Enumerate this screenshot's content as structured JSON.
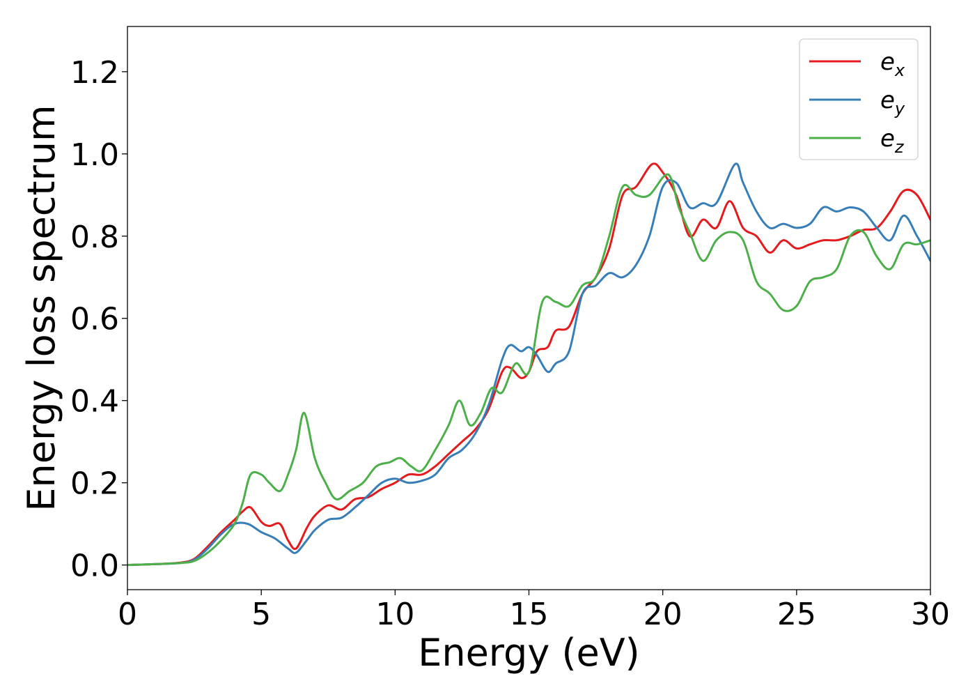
{
  "chart_data": {
    "type": "line",
    "xlabel": "Energy (eV)",
    "ylabel": "Energy loss spectrum",
    "xlim": [
      0,
      30
    ],
    "ylim": [
      -0.06,
      1.31
    ],
    "xticks": [
      0,
      5,
      10,
      15,
      20,
      25,
      30
    ],
    "xtick_labels": [
      "0",
      "5",
      "10",
      "15",
      "20",
      "25",
      "30"
    ],
    "yticks": [
      0.0,
      0.2,
      0.4,
      0.6,
      0.8,
      1.0,
      1.2
    ],
    "ytick_labels": [
      "0.0",
      "0.2",
      "0.4",
      "0.6",
      "0.8",
      "1.0",
      "1.2"
    ],
    "grid": false,
    "legend_position": "top-right",
    "series": [
      {
        "name": "e",
        "subscript": "x",
        "color": "#e41a1c",
        "x": [
          0,
          1,
          2,
          2.5,
          3,
          3.5,
          4,
          4.3,
          4.6,
          5,
          5.3,
          5.7,
          6,
          6.3,
          6.7,
          7,
          7.5,
          8,
          8.5,
          9,
          9.5,
          10,
          10.5,
          11,
          11.5,
          12,
          12.5,
          13,
          13.5,
          14,
          14.3,
          14.7,
          15,
          15.3,
          15.7,
          16,
          16.5,
          17,
          17.5,
          18,
          18.5,
          19,
          19.6,
          20,
          20.5,
          21,
          21.5,
          22,
          22.5,
          23,
          23.5,
          24,
          24.5,
          25,
          25.5,
          26,
          26.5,
          27,
          27.5,
          28,
          28.5,
          29,
          29.5,
          30
        ],
        "y": [
          0.0,
          0.002,
          0.006,
          0.015,
          0.045,
          0.08,
          0.11,
          0.13,
          0.14,
          0.105,
          0.095,
          0.1,
          0.06,
          0.04,
          0.09,
          0.12,
          0.145,
          0.135,
          0.16,
          0.165,
          0.185,
          0.2,
          0.22,
          0.22,
          0.24,
          0.27,
          0.3,
          0.33,
          0.38,
          0.47,
          0.48,
          0.455,
          0.47,
          0.52,
          0.53,
          0.57,
          0.58,
          0.66,
          0.7,
          0.77,
          0.9,
          0.92,
          0.975,
          0.955,
          0.9,
          0.8,
          0.84,
          0.82,
          0.885,
          0.82,
          0.8,
          0.76,
          0.79,
          0.77,
          0.78,
          0.79,
          0.79,
          0.8,
          0.815,
          0.82,
          0.86,
          0.91,
          0.9,
          0.84
        ]
      },
      {
        "name": "e",
        "subscript": "y",
        "color": "#377eb8",
        "x": [
          0,
          1,
          2,
          2.5,
          3,
          3.5,
          4,
          4.5,
          5,
          5.5,
          6,
          6.3,
          6.7,
          7,
          7.5,
          8,
          8.5,
          9,
          9.5,
          10,
          10.5,
          11,
          11.5,
          12,
          12.5,
          13,
          13.5,
          14,
          14.3,
          14.7,
          15,
          15.3,
          15.7,
          16,
          16.5,
          17,
          17.5,
          18,
          18.5,
          19,
          19.5,
          20,
          20.5,
          21,
          21.5,
          22,
          22.7,
          23,
          23.5,
          24,
          24.5,
          25,
          25.5,
          26,
          26.5,
          27,
          27.5,
          28,
          28.5,
          29,
          29.5,
          30
        ],
        "y": [
          0.0,
          0.002,
          0.005,
          0.013,
          0.04,
          0.075,
          0.1,
          0.1,
          0.08,
          0.065,
          0.04,
          0.03,
          0.06,
          0.085,
          0.11,
          0.115,
          0.14,
          0.17,
          0.2,
          0.21,
          0.2,
          0.205,
          0.22,
          0.26,
          0.28,
          0.32,
          0.39,
          0.5,
          0.535,
          0.52,
          0.53,
          0.51,
          0.47,
          0.49,
          0.52,
          0.66,
          0.68,
          0.71,
          0.7,
          0.73,
          0.8,
          0.92,
          0.93,
          0.87,
          0.88,
          0.88,
          0.975,
          0.93,
          0.86,
          0.82,
          0.83,
          0.82,
          0.83,
          0.87,
          0.86,
          0.87,
          0.86,
          0.82,
          0.79,
          0.85,
          0.8,
          0.74
        ]
      },
      {
        "name": "e",
        "subscript": "z",
        "color": "#4daf4a",
        "x": [
          0,
          1,
          2,
          2.5,
          3,
          3.5,
          4,
          4.3,
          4.6,
          5,
          5.3,
          5.7,
          6,
          6.3,
          6.6,
          7,
          7.4,
          7.8,
          8.3,
          8.8,
          9.3,
          9.8,
          10.2,
          10.6,
          11,
          11.5,
          12,
          12.4,
          12.8,
          13.2,
          13.6,
          14,
          14.5,
          15,
          15.5,
          16,
          16.5,
          17,
          17.5,
          18,
          18.5,
          19,
          19.5,
          20.2,
          20.6,
          21,
          21.5,
          22,
          22.5,
          23,
          23.5,
          24,
          24.5,
          25,
          25.5,
          26,
          26.5,
          27,
          27.5,
          28,
          28.5,
          29,
          29.5,
          30
        ],
        "y": [
          0.0,
          0.002,
          0.005,
          0.01,
          0.03,
          0.06,
          0.1,
          0.15,
          0.22,
          0.22,
          0.2,
          0.18,
          0.22,
          0.28,
          0.37,
          0.26,
          0.2,
          0.16,
          0.18,
          0.2,
          0.24,
          0.25,
          0.26,
          0.24,
          0.23,
          0.28,
          0.34,
          0.4,
          0.34,
          0.37,
          0.43,
          0.42,
          0.49,
          0.47,
          0.64,
          0.64,
          0.63,
          0.68,
          0.7,
          0.8,
          0.92,
          0.9,
          0.9,
          0.95,
          0.87,
          0.81,
          0.74,
          0.79,
          0.81,
          0.79,
          0.69,
          0.66,
          0.62,
          0.63,
          0.69,
          0.7,
          0.72,
          0.8,
          0.81,
          0.75,
          0.72,
          0.78,
          0.78,
          0.79
        ]
      }
    ]
  }
}
